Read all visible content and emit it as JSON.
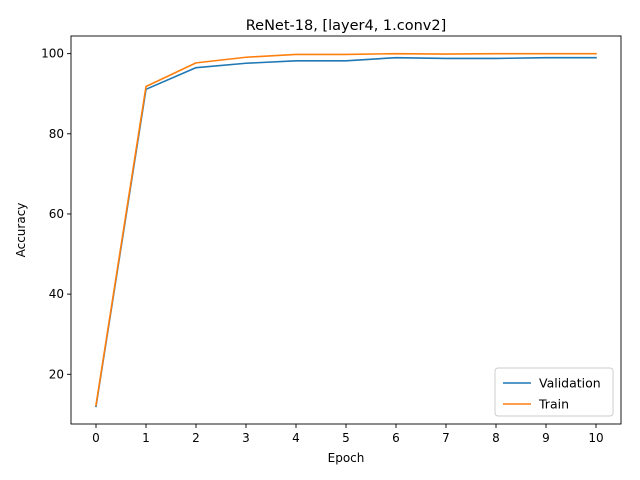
{
  "chart_data": {
    "type": "line",
    "title": "ReNet-18, [layer4, 1.conv2]",
    "xlabel": "Epoch",
    "ylabel": "Accuracy",
    "x": [
      0,
      1,
      2,
      3,
      4,
      5,
      6,
      7,
      8,
      9,
      10
    ],
    "xticks": [
      "0",
      "1",
      "2",
      "3",
      "4",
      "5",
      "6",
      "7",
      "8",
      "9",
      "10"
    ],
    "yticks": [
      "20",
      "40",
      "60",
      "80",
      "100"
    ],
    "xlim": [
      -0.5,
      10.5
    ],
    "ylim": [
      7.6,
      104.4
    ],
    "grid": false,
    "legend_position": "lower-right",
    "series": [
      {
        "name": "Validation",
        "color": "#1f77b4",
        "values": [
          12.0,
          91.1,
          96.5,
          97.6,
          98.2,
          98.2,
          99.0,
          98.8,
          98.8,
          99.0,
          99.0
        ]
      },
      {
        "name": "Train",
        "color": "#ff7f0e",
        "values": [
          12.3,
          91.8,
          97.7,
          99.1,
          99.8,
          99.8,
          100.0,
          99.9,
          100.0,
          100.0,
          100.0
        ]
      }
    ]
  }
}
